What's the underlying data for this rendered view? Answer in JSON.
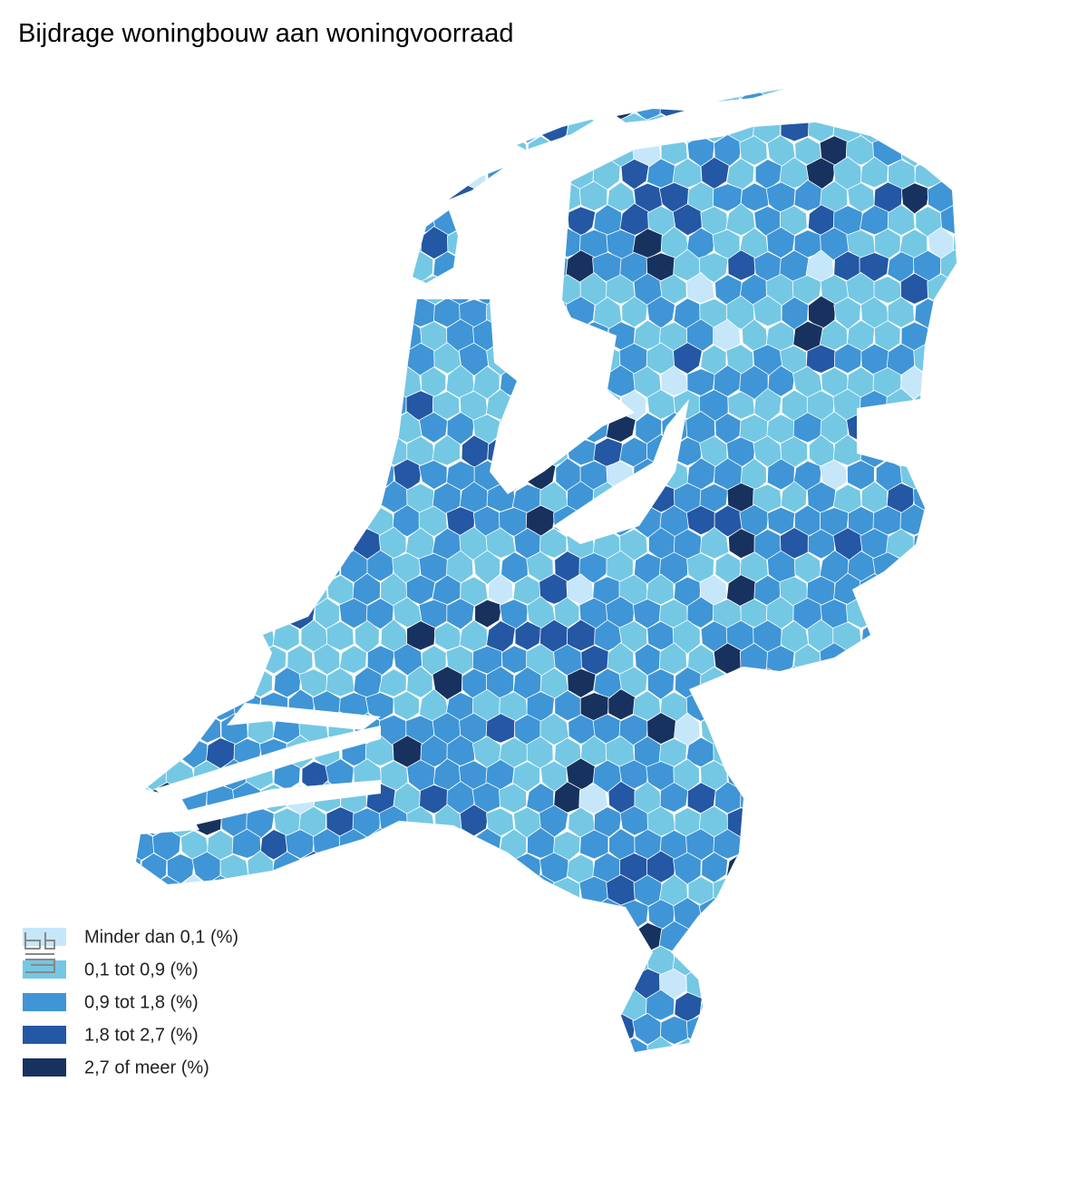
{
  "title": "Bijdrage woningbouw aan woningvoorraad",
  "legend": [
    {
      "label": "Minder dan 0,1 (%)",
      "color": "#c6e6fa"
    },
    {
      "label": "0,1 tot 0,9 (%)",
      "color": "#74c8e4"
    },
    {
      "label": "0,9 tot 1,8 (%)",
      "color": "#3f95d6"
    },
    {
      "label": "1,8 tot 2,7 (%)",
      "color": "#2457a4"
    },
    {
      "label": "2,7 of meer (%)",
      "color": "#17325e"
    }
  ]
}
